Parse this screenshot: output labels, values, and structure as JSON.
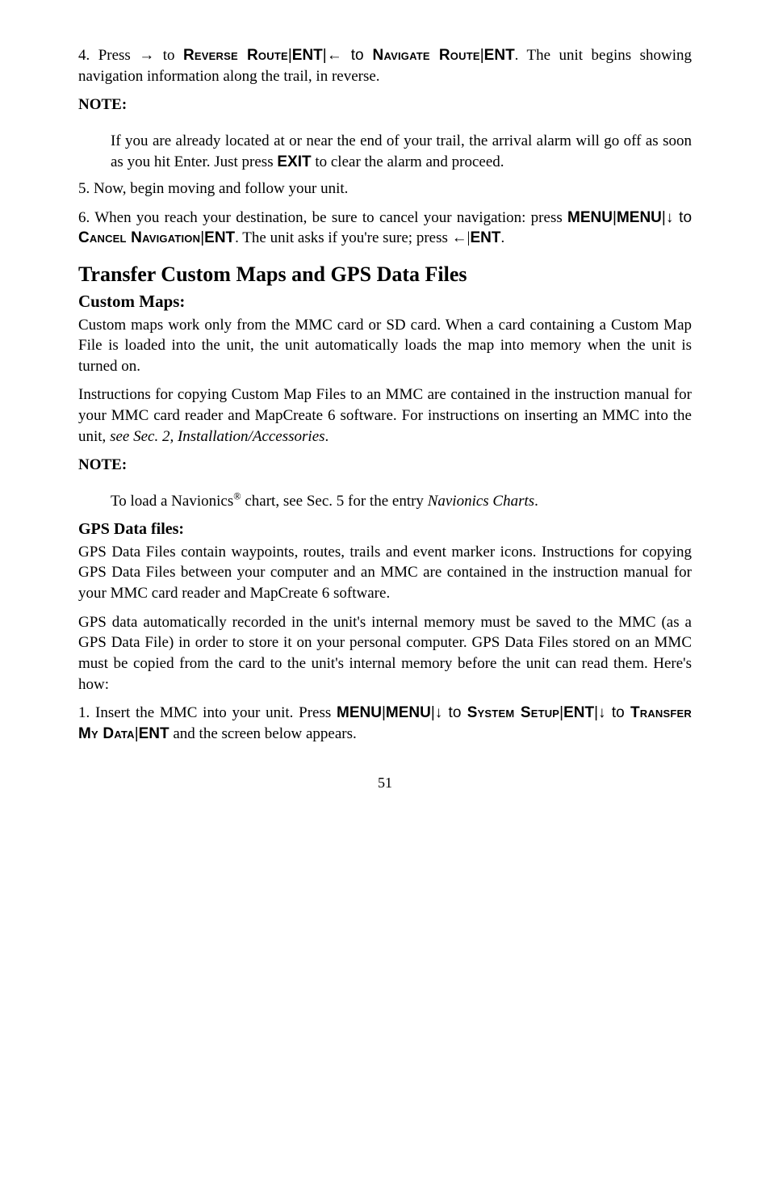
{
  "p1_a": "4. Press → to ",
  "p1_b": "Reverse Route",
  "p1_c": "|",
  "p1_d": "ENT",
  "p1_e": "|← to ",
  "p1_f": "Navigate Route",
  "p1_g": "|",
  "p1_h": "ENT",
  "p1_i": ". The unit begins showing navigation information along the trail, in reverse.",
  "note_label": "NOTE:",
  "note1_a": "If you are already located at or near the end of your trail, the arrival alarm will go off as soon as you hit Enter. Just press ",
  "note1_b": "EXIT",
  "note1_c": " to clear the alarm and proceed.",
  "p5": "5. Now, begin moving and follow your unit.",
  "p6_a": "6. When you reach your destination, be sure to cancel your navigation: press ",
  "p6_b": "MENU",
  "p6_c": "|",
  "p6_d": "MENU",
  "p6_e": "|↓ to ",
  "p6_f": "Cancel Navigation",
  "p6_g": "|",
  "p6_h": "ENT",
  "p6_i": ". The unit asks if you're sure; press ←|",
  "p6_j": "ENT",
  "p6_k": ".",
  "h2": "Transfer Custom Maps and GPS Data Files",
  "sub_custom": "Custom Maps:",
  "cm1": "Custom maps work only from the MMC card or SD card. When a card containing a Custom Map File is loaded into the unit, the unit automatically loads the map into memory when the unit is turned on.",
  "cm2_a": "Instructions for copying Custom Map Files to an MMC are contained in the instruction manual for your MMC card reader and MapCreate 6 software. For instructions on inserting an MMC into the unit, ",
  "cm2_b": "see Sec. 2, Installation/Accessories",
  "cm2_c": ".",
  "note2_a": "To load a Navionics",
  "note2_sup": "®",
  "note2_b": " chart, see Sec. 5 for the entry ",
  "note2_c": "Navionics Charts",
  "note2_d": ".",
  "sub_gps": "GPS Data files:",
  "gd1": "GPS Data Files contain waypoints, routes, trails and event marker icons. Instructions for copying GPS Data Files between your computer and an MMC are contained in the instruction manual for your MMC card reader and MapCreate 6 software.",
  "gd2": "GPS data automatically recorded in the unit's internal memory must be saved to the MMC (as a GPS Data File) in order to store it on your personal computer. GPS Data Files stored on an MMC must be copied from the card to the unit's internal memory before the unit can read them. Here's how:",
  "s1_a": "1. Insert the MMC into your unit. Press ",
  "s1_b": "MENU",
  "s1_c": "|",
  "s1_d": "MENU",
  "s1_e": "|↓ to ",
  "s1_f": "System Setup",
  "s1_g": "|",
  "s1_h": "ENT",
  "s1_i": "|↓ to ",
  "s1_j": "Transfer My Data",
  "s1_k": "|",
  "s1_l": "ENT",
  "s1_m": " and the screen below appears.",
  "pagenum": "51"
}
